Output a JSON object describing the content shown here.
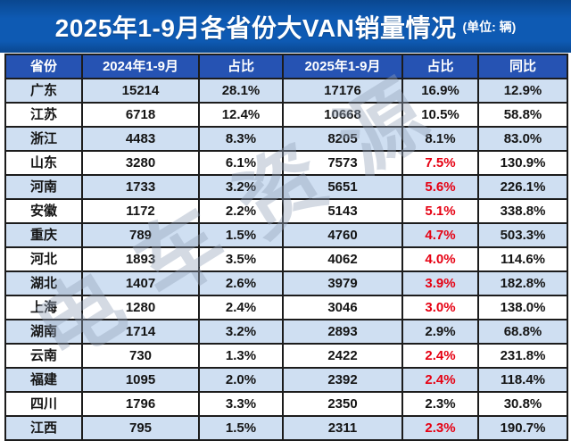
{
  "title": {
    "main": "2025年1-9月各省份大VAN销量情况",
    "unit": "(单位: 辆)"
  },
  "watermark": {
    "text": "电车资源"
  },
  "colors": {
    "title_bg": "#0e5ab3",
    "title_bg_dark": "#0a478f",
    "header_bg": "#2653b3",
    "row_alt_bg": "#cfdff2",
    "border": "#1c1c1c",
    "text": "#141414",
    "red": "#e60012"
  },
  "chart_data": {
    "type": "table",
    "title": "2025年1-9月各省份大VAN销量情况",
    "unit": "辆",
    "columns": [
      "省份",
      "2024年1-9月",
      "占比",
      "2025年1-9月",
      "占比",
      "同比"
    ],
    "rows": [
      {
        "province": "广东",
        "sales_2024": "15214",
        "share_2024": "28.1%",
        "sales_2025": "17176",
        "share_2025": "16.9%",
        "share_2025_red": false,
        "yoy": "12.9%"
      },
      {
        "province": "江苏",
        "sales_2024": "6718",
        "share_2024": "12.4%",
        "sales_2025": "10668",
        "share_2025": "10.5%",
        "share_2025_red": false,
        "yoy": "58.8%"
      },
      {
        "province": "浙江",
        "sales_2024": "4483",
        "share_2024": "8.3%",
        "sales_2025": "8205",
        "share_2025": "8.1%",
        "share_2025_red": false,
        "yoy": "83.0%"
      },
      {
        "province": "山东",
        "sales_2024": "3280",
        "share_2024": "6.1%",
        "sales_2025": "7573",
        "share_2025": "7.5%",
        "share_2025_red": true,
        "yoy": "130.9%"
      },
      {
        "province": "河南",
        "sales_2024": "1733",
        "share_2024": "3.2%",
        "sales_2025": "5651",
        "share_2025": "5.6%",
        "share_2025_red": true,
        "yoy": "226.1%"
      },
      {
        "province": "安徽",
        "sales_2024": "1172",
        "share_2024": "2.2%",
        "sales_2025": "5143",
        "share_2025": "5.1%",
        "share_2025_red": true,
        "yoy": "338.8%"
      },
      {
        "province": "重庆",
        "sales_2024": "789",
        "share_2024": "1.5%",
        "sales_2025": "4760",
        "share_2025": "4.7%",
        "share_2025_red": true,
        "yoy": "503.3%"
      },
      {
        "province": "河北",
        "sales_2024": "1893",
        "share_2024": "3.5%",
        "sales_2025": "4062",
        "share_2025": "4.0%",
        "share_2025_red": true,
        "yoy": "114.6%"
      },
      {
        "province": "湖北",
        "sales_2024": "1407",
        "share_2024": "2.6%",
        "sales_2025": "3979",
        "share_2025": "3.9%",
        "share_2025_red": true,
        "yoy": "182.8%"
      },
      {
        "province": "上海",
        "sales_2024": "1280",
        "share_2024": "2.4%",
        "sales_2025": "3046",
        "share_2025": "3.0%",
        "share_2025_red": true,
        "yoy": "138.0%"
      },
      {
        "province": "湖南",
        "sales_2024": "1714",
        "share_2024": "3.2%",
        "sales_2025": "2893",
        "share_2025": "2.9%",
        "share_2025_red": false,
        "yoy": "68.8%"
      },
      {
        "province": "云南",
        "sales_2024": "730",
        "share_2024": "1.3%",
        "sales_2025": "2422",
        "share_2025": "2.4%",
        "share_2025_red": true,
        "yoy": "231.8%"
      },
      {
        "province": "福建",
        "sales_2024": "1095",
        "share_2024": "2.0%",
        "sales_2025": "2392",
        "share_2025": "2.4%",
        "share_2025_red": true,
        "yoy": "118.4%"
      },
      {
        "province": "四川",
        "sales_2024": "1796",
        "share_2024": "3.3%",
        "sales_2025": "2350",
        "share_2025": "2.3%",
        "share_2025_red": false,
        "yoy": "30.8%"
      },
      {
        "province": "江西",
        "sales_2024": "795",
        "share_2024": "1.5%",
        "sales_2025": "2311",
        "share_2025": "2.3%",
        "share_2025_red": true,
        "yoy": "190.7%"
      }
    ]
  }
}
